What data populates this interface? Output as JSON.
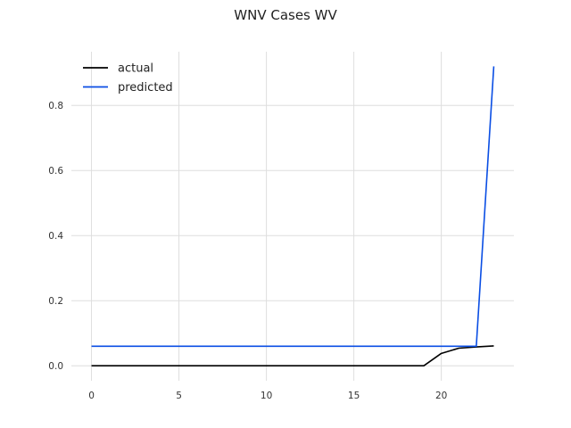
{
  "chart_data": {
    "type": "line",
    "title": "WNV Cases WV",
    "xlabel": "",
    "ylabel": "",
    "xlim": [
      -1.15,
      24.15
    ],
    "ylim": [
      -0.046,
      0.965
    ],
    "xticks": [
      0,
      5,
      10,
      15,
      20
    ],
    "yticks": [
      0.0,
      0.2,
      0.4,
      0.6,
      0.8
    ],
    "grid": true,
    "legend_position": "top-left",
    "series": [
      {
        "name": "actual",
        "color": "#000000",
        "x": [
          0,
          1,
          2,
          3,
          4,
          5,
          6,
          7,
          8,
          9,
          10,
          11,
          12,
          13,
          14,
          15,
          16,
          17,
          18,
          19,
          20,
          21,
          22,
          23
        ],
        "values": [
          0,
          0,
          0,
          0,
          0,
          0,
          0,
          0,
          0,
          0,
          0,
          0,
          0,
          0,
          0,
          0,
          0,
          0,
          0,
          0,
          0.038,
          0.054,
          0.058,
          0.061
        ]
      },
      {
        "name": "predicted",
        "color": "#0a4ee4",
        "x": [
          0,
          1,
          2,
          3,
          4,
          5,
          6,
          7,
          8,
          9,
          10,
          11,
          12,
          13,
          14,
          15,
          16,
          17,
          18,
          19,
          20,
          21,
          22,
          23
        ],
        "values": [
          0.06,
          0.06,
          0.06,
          0.06,
          0.06,
          0.06,
          0.06,
          0.06,
          0.06,
          0.06,
          0.06,
          0.06,
          0.06,
          0.06,
          0.06,
          0.06,
          0.06,
          0.06,
          0.06,
          0.06,
          0.06,
          0.06,
          0.06,
          0.92
        ]
      }
    ]
  }
}
